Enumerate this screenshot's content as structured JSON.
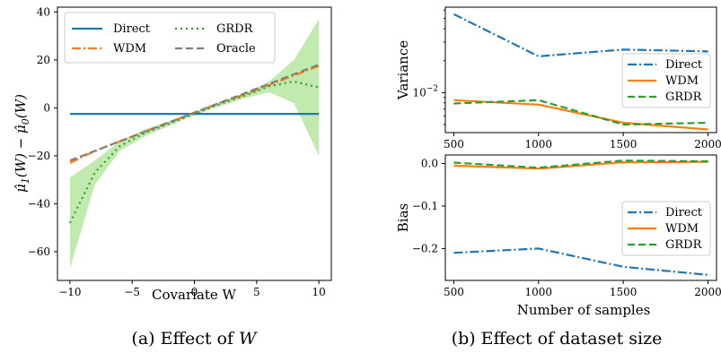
{
  "captions": {
    "a_prefix": "(a) Effect of",
    "a_var": "W",
    "b": "(b) Effect of dataset size"
  },
  "colors": {
    "direct": "#1f77b4",
    "wdm": "#ff7f0e",
    "grdr": "#2ca02c",
    "oracle": "#7f7f7f",
    "band": "#b6e6a1"
  },
  "chart_data": [
    {
      "id": "a",
      "type": "line",
      "xlabel": "Covariate W",
      "ylabel_parts": [
        "μ̂",
        "1",
        "(W) − ",
        "μ̂",
        "0",
        "(W)"
      ],
      "xlim": [
        -11,
        11
      ],
      "ylim": [
        -72,
        42
      ],
      "xticks": [
        -10,
        -5,
        0,
        5,
        10
      ],
      "yticks": [
        -60,
        -40,
        -20,
        0,
        20,
        40
      ],
      "grid": false,
      "legend_position": "top-left",
      "x": [
        -10,
        -8,
        -6,
        -4,
        -2,
        0,
        2,
        4,
        6,
        8,
        10
      ],
      "series": [
        {
          "name": "Direct",
          "style": "solid",
          "color_key": "direct",
          "values": [
            -2.5,
            -2.5,
            -2.5,
            -2.5,
            -2.5,
            -2.5,
            -2.5,
            -2.5,
            -2.5,
            -2.5,
            -2.5
          ]
        },
        {
          "name": "WDM",
          "style": "dashdot",
          "color_key": "wdm",
          "values": [
            -23,
            -18,
            -14,
            -10,
            -6,
            -2,
            2,
            5.5,
            9.5,
            13.5,
            17.5
          ]
        },
        {
          "name": "GRDR",
          "style": "dotted",
          "color_key": "grdr",
          "values": [
            -48,
            -27,
            -16,
            -10.5,
            -6.5,
            -2.5,
            1.5,
            5,
            9,
            11,
            8.5
          ]
        },
        {
          "name": "Oracle",
          "style": "dashed",
          "color_key": "oracle",
          "values": [
            -22,
            -18,
            -14,
            -10,
            -6,
            -2,
            2,
            6,
            10,
            14,
            18
          ]
        }
      ],
      "band": {
        "series": "GRDR",
        "lower": [
          -67,
          -32,
          -18,
          -12,
          -7.5,
          -3,
          0.5,
          4,
          6.5,
          2,
          -20
        ],
        "upper": [
          -29,
          -22,
          -14,
          -9,
          -5.5,
          -2,
          2.5,
          6,
          11,
          20,
          37
        ]
      }
    },
    {
      "id": "b-top",
      "type": "line",
      "ylabel": "Variance",
      "yscale": "log",
      "xlim": [
        450,
        2050
      ],
      "ylim": [
        0.0042,
        0.064
      ],
      "xticks": [
        500,
        1000,
        1500,
        2000
      ],
      "ytick_label": "10",
      "ytick_exponent": "−2",
      "ytick_value": 0.01,
      "grid": false,
      "legend_position": "center-right",
      "x": [
        500,
        1000,
        1500,
        2000
      ],
      "series": [
        {
          "name": "Direct",
          "style": "dashdot",
          "color_key": "direct",
          "values": [
            0.055,
            0.022,
            0.0255,
            0.0245
          ]
        },
        {
          "name": "WDM",
          "style": "solid",
          "color_key": "wdm",
          "values": [
            0.0085,
            0.0077,
            0.0052,
            0.0045
          ]
        },
        {
          "name": "GRDR",
          "style": "dashed",
          "color_key": "grdr",
          "values": [
            0.0079,
            0.0085,
            0.005,
            0.0052
          ]
        }
      ]
    },
    {
      "id": "b-bottom",
      "type": "line",
      "ylabel": "Bias",
      "xlabel": "Number of samples",
      "xlim": [
        450,
        2050
      ],
      "ylim": [
        -0.275,
        0.02
      ],
      "xticks": [
        500,
        1000,
        1500,
        2000
      ],
      "yticks": [
        0.0,
        -0.1,
        -0.2
      ],
      "ytick_labels": [
        "0.0",
        "−0.1",
        "−0.2"
      ],
      "grid": false,
      "legend_position": "center-right",
      "x": [
        500,
        1000,
        1500,
        2000
      ],
      "series": [
        {
          "name": "Direct",
          "style": "dashdot",
          "color_key": "direct",
          "values": [
            -0.21,
            -0.2,
            -0.243,
            -0.262
          ]
        },
        {
          "name": "WDM",
          "style": "solid",
          "color_key": "wdm",
          "values": [
            -0.005,
            -0.012,
            0.003,
            0.004
          ]
        },
        {
          "name": "GRDR",
          "style": "dashed",
          "color_key": "grdr",
          "values": [
            0.002,
            -0.01,
            0.007,
            0.005
          ]
        }
      ]
    }
  ]
}
